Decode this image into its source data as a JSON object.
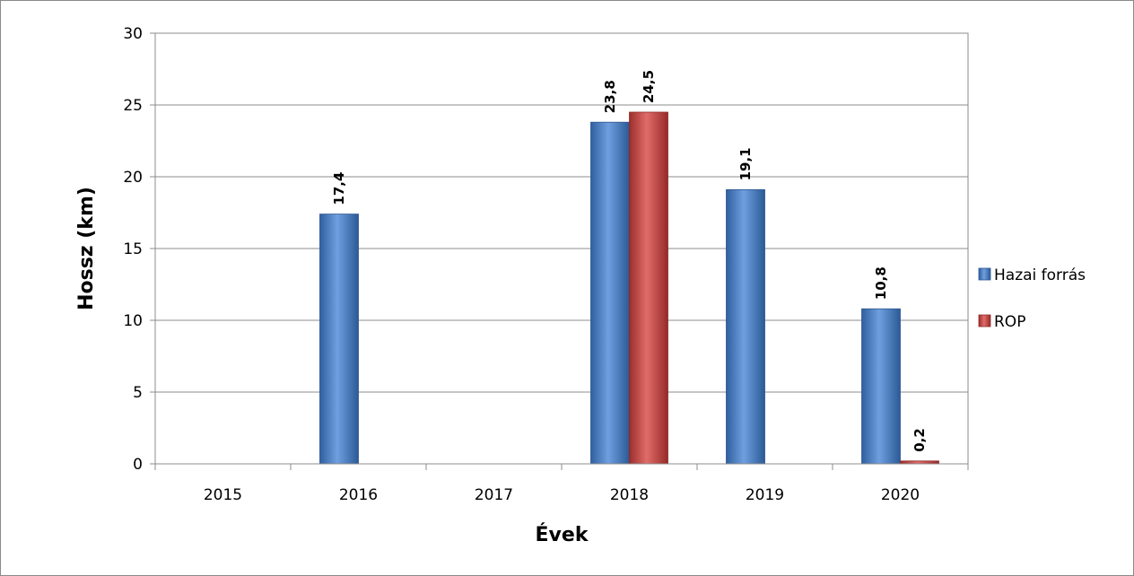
{
  "chart_data": {
    "type": "bar",
    "title": "",
    "xlabel": "Évek",
    "ylabel": "Hossz (km)",
    "categories": [
      "2015",
      "2016",
      "2017",
      "2018",
      "2019",
      "2020"
    ],
    "ylim": [
      0,
      30
    ],
    "yticks": [
      "0",
      "5",
      "10",
      "15",
      "20",
      "25",
      "30"
    ],
    "grid": true,
    "legend_position": "right",
    "series": [
      {
        "name": "Hazai forrás",
        "color": "#4a7ebb",
        "values": [
          null,
          17.4,
          null,
          23.8,
          19.1,
          10.8
        ],
        "labels": [
          "",
          "17,4",
          "",
          "23,8",
          "19,1",
          "10,8"
        ]
      },
      {
        "name": "ROP",
        "color": "#be4b48",
        "values": [
          null,
          null,
          null,
          24.5,
          null,
          0.2
        ],
        "labels": [
          "",
          "",
          "",
          "24,5",
          "",
          "0,2"
        ]
      }
    ]
  }
}
